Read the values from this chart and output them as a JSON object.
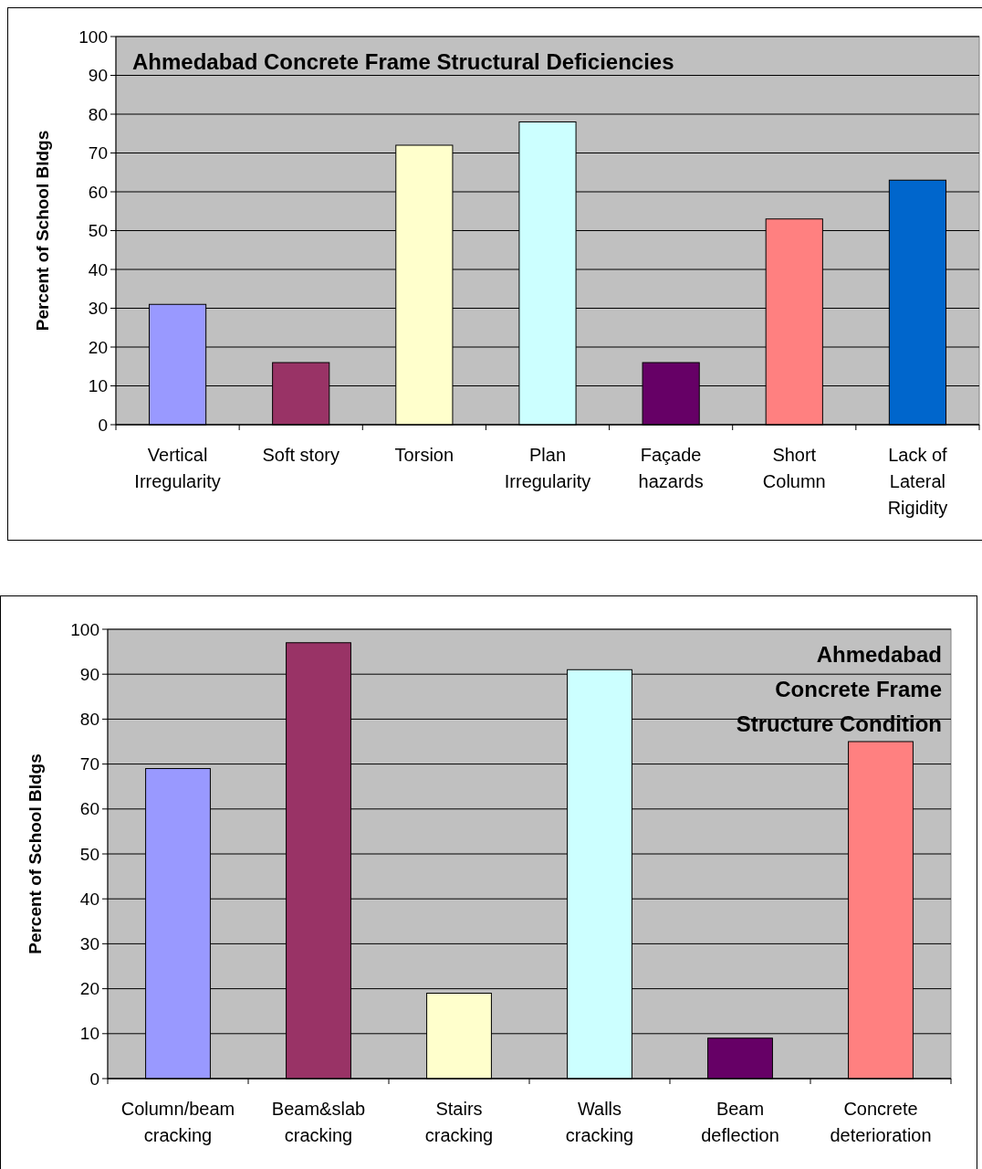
{
  "chart_data": [
    {
      "type": "bar",
      "title": "Ahmedabad Concrete Frame Structural Deficiencies",
      "ylabel": "Percent of School Bldgs",
      "categories": [
        "Vertical Irregularity",
        "Soft story",
        "Torsion",
        "Plan Irregularity",
        "Façade hazards",
        "Short Column",
        "Lack of Lateral Rigidity"
      ],
      "values": [
        31,
        16,
        72,
        78,
        16,
        53,
        63
      ],
      "colors": [
        "#9999ff",
        "#993366",
        "#ffffcc",
        "#ccffff",
        "#660066",
        "#ff8080",
        "#0066cc"
      ],
      "ylim": [
        0,
        100
      ],
      "yticks": [
        0,
        10,
        20,
        30,
        40,
        50,
        60,
        70,
        80,
        90,
        100
      ],
      "grid": "y"
    },
    {
      "type": "bar",
      "title": "Ahmedabad Concrete Frame Structure Condition",
      "ylabel": "Percent of School Bldgs",
      "categories": [
        "Column/beam cracking",
        "Beam&slab cracking",
        "Stairs cracking",
        "Walls cracking",
        "Beam deflection",
        "Concrete deterioration"
      ],
      "values": [
        69,
        97,
        19,
        91,
        9,
        75
      ],
      "colors": [
        "#9999ff",
        "#993366",
        "#ffffcc",
        "#ccffff",
        "#660066",
        "#ff8080"
      ],
      "ylim": [
        0,
        100
      ],
      "yticks": [
        0,
        10,
        20,
        30,
        40,
        50,
        60,
        70,
        80,
        90,
        100
      ],
      "grid": "y"
    }
  ]
}
